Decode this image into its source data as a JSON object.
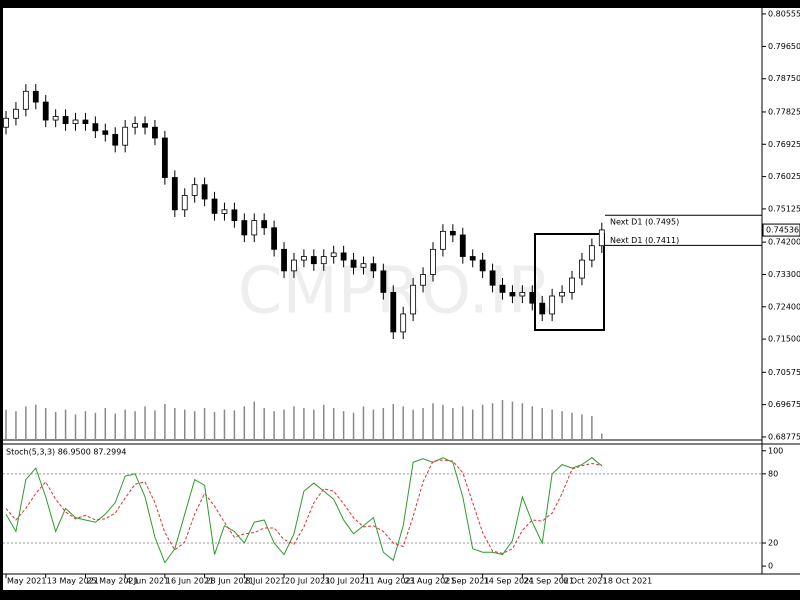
{
  "chart_data": [
    {
      "type": "candlestick",
      "categories": [
        "May 2021",
        null,
        null,
        null,
        "13 May 2021",
        null,
        null,
        null,
        "25 May 2021",
        null,
        null,
        null,
        "4 Jun 2021",
        null,
        null,
        null,
        "16 Jun 2021",
        null,
        null,
        null,
        "28 Jun 2021",
        null,
        null,
        null,
        "8 Jul 2021",
        null,
        null,
        null,
        "20 Jul 2021",
        null,
        null,
        null,
        "30 Jul 2021",
        null,
        null,
        null,
        "11 Aug 2021",
        null,
        null,
        null,
        "23 Aug 2021",
        null,
        null,
        null,
        "2 Sep 2021",
        null,
        null,
        null,
        "14 Sep 2021",
        null,
        null,
        null,
        "24 Sep 2021",
        null,
        null,
        null,
        "6 Oct 2021",
        null,
        null,
        null,
        "18 Oct 2021"
      ],
      "open": [
        0.774,
        0.7765,
        0.779,
        0.784,
        0.781,
        0.776,
        0.777,
        0.775,
        0.776,
        0.775,
        0.773,
        0.772,
        0.769,
        0.774,
        0.775,
        0.774,
        0.771,
        0.76,
        0.751,
        0.755,
        0.758,
        0.754,
        0.75,
        0.751,
        0.748,
        0.744,
        0.748,
        0.746,
        0.74,
        0.734,
        0.737,
        0.738,
        0.736,
        0.738,
        0.739,
        0.737,
        0.735,
        0.736,
        0.734,
        0.728,
        0.717,
        0.722,
        0.73,
        0.733,
        0.74,
        0.745,
        0.744,
        0.738,
        0.737,
        0.734,
        0.73,
        0.728,
        0.727,
        0.728,
        0.725,
        0.722,
        0.727,
        0.728,
        0.732,
        0.737,
        0.741
      ],
      "high": [
        0.7785,
        0.781,
        0.786,
        0.786,
        0.783,
        0.779,
        0.779,
        0.778,
        0.778,
        0.777,
        0.775,
        0.774,
        0.776,
        0.777,
        0.777,
        0.776,
        0.773,
        0.762,
        0.757,
        0.76,
        0.76,
        0.756,
        0.753,
        0.753,
        0.75,
        0.75,
        0.75,
        0.748,
        0.742,
        0.739,
        0.74,
        0.74,
        0.74,
        0.741,
        0.741,
        0.739,
        0.738,
        0.738,
        0.736,
        0.73,
        0.724,
        0.732,
        0.735,
        0.742,
        0.747,
        0.747,
        0.746,
        0.74,
        0.739,
        0.736,
        0.732,
        0.73,
        0.73,
        0.73,
        0.727,
        0.729,
        0.73,
        0.734,
        0.739,
        0.743,
        0.7474
      ],
      "low": [
        0.772,
        0.7745,
        0.777,
        0.779,
        0.774,
        0.774,
        0.773,
        0.773,
        0.773,
        0.771,
        0.77,
        0.767,
        0.767,
        0.772,
        0.772,
        0.769,
        0.758,
        0.749,
        0.749,
        0.753,
        0.752,
        0.748,
        0.748,
        0.746,
        0.742,
        0.742,
        0.744,
        0.738,
        0.732,
        0.732,
        0.735,
        0.734,
        0.734,
        0.736,
        0.735,
        0.733,
        0.733,
        0.732,
        0.726,
        0.715,
        0.715,
        0.72,
        0.728,
        0.731,
        0.738,
        0.742,
        0.736,
        0.735,
        0.732,
        0.728,
        0.726,
        0.725,
        0.725,
        0.723,
        0.72,
        0.72,
        0.725,
        0.726,
        0.73,
        0.735,
        0.739
      ],
      "close": [
        0.7765,
        0.779,
        0.784,
        0.781,
        0.776,
        0.777,
        0.775,
        0.776,
        0.775,
        0.773,
        0.772,
        0.769,
        0.774,
        0.775,
        0.774,
        0.771,
        0.76,
        0.751,
        0.755,
        0.758,
        0.754,
        0.75,
        0.751,
        0.748,
        0.744,
        0.748,
        0.746,
        0.74,
        0.734,
        0.737,
        0.738,
        0.736,
        0.738,
        0.739,
        0.737,
        0.735,
        0.736,
        0.734,
        0.728,
        0.717,
        0.722,
        0.73,
        0.733,
        0.74,
        0.745,
        0.744,
        0.738,
        0.737,
        0.734,
        0.73,
        0.728,
        0.727,
        0.728,
        0.725,
        0.722,
        0.727,
        0.728,
        0.732,
        0.737,
        0.741,
        0.7454
      ],
      "volume": [
        38,
        36,
        42,
        44,
        40,
        35,
        38,
        32,
        36,
        34,
        40,
        33,
        38,
        36,
        42,
        37,
        45,
        40,
        38,
        36,
        40,
        35,
        38,
        37,
        42,
        48,
        40,
        36,
        38,
        42,
        40,
        38,
        44,
        40,
        36,
        34,
        42,
        38,
        40,
        45,
        42,
        38,
        40,
        46,
        44,
        40,
        42,
        38,
        44,
        46,
        50,
        48,
        46,
        42,
        40,
        38,
        36,
        34,
        32,
        30,
        8
      ],
      "volume_lim": [
        0,
        60
      ],
      "ylim": [
        0.6869,
        0.8072
      ],
      "yticks": [
        0.80555,
        {
          "value": 0.7965,
          "label": "0.79650"
        },
        {
          "value": 0.7875,
          "label": "0.78750"
        },
        0.77825,
        0.76925,
        0.76025,
        0.75125,
        {
          "value": 0.742,
          "label": "0.74200"
        },
        {
          "value": 0.733,
          "label": "0.73300"
        },
        {
          "value": 0.724,
          "label": "0.72400"
        },
        {
          "value": 0.715,
          "label": "0.71500"
        },
        0.70575,
        0.69675,
        0.68775
      ],
      "last_price": 0.74536,
      "annotations": [
        {
          "text": "Next D1 (0.7495)",
          "value": 0.7495
        },
        {
          "text": "Next D1 (0.7411)",
          "value": 0.7411
        }
      ],
      "watermark": "CMPRO.IR",
      "bull_color": "#ffffff",
      "bear_color": "#000000"
    },
    {
      "type": "line",
      "title": "Stoch(5,3,3) 86.9500 87.2994",
      "series": [
        {
          "color": "#2e9b2e",
          "values": [
            45,
            30,
            75,
            85,
            60,
            30,
            50,
            42,
            40,
            38,
            45,
            55,
            78,
            80,
            60,
            25,
            3,
            15,
            45,
            75,
            70,
            10,
            35,
            30,
            20,
            38,
            40,
            20,
            10,
            28,
            65,
            72,
            65,
            58,
            40,
            28,
            35,
            42,
            12,
            5,
            35,
            90,
            93,
            90,
            94,
            90,
            60,
            15,
            12,
            12,
            10,
            22,
            60,
            38,
            20,
            80,
            88,
            85,
            88,
            94,
            86.95
          ]
        },
        {
          "color": "#e03030",
          "dashed": true,
          "values": [
            50,
            40,
            50,
            63,
            73,
            58,
            47,
            41,
            44,
            40,
            41,
            46,
            59,
            71,
            73,
            55,
            29,
            14,
            21,
            45,
            63,
            52,
            38,
            25,
            28,
            29,
            33,
            33,
            23,
            19,
            34,
            55,
            67,
            65,
            54,
            42,
            34,
            35,
            30,
            20,
            17,
            43,
            73,
            91,
            92,
            91,
            81,
            55,
            29,
            13,
            11,
            15,
            31,
            40,
            39,
            46,
            63,
            84,
            87,
            89,
            87.2994
          ]
        }
      ],
      "ylim": [
        -19,
        105
      ],
      "yticks": [
        100,
        80,
        20,
        0
      ],
      "levels": [
        80,
        20
      ]
    }
  ]
}
